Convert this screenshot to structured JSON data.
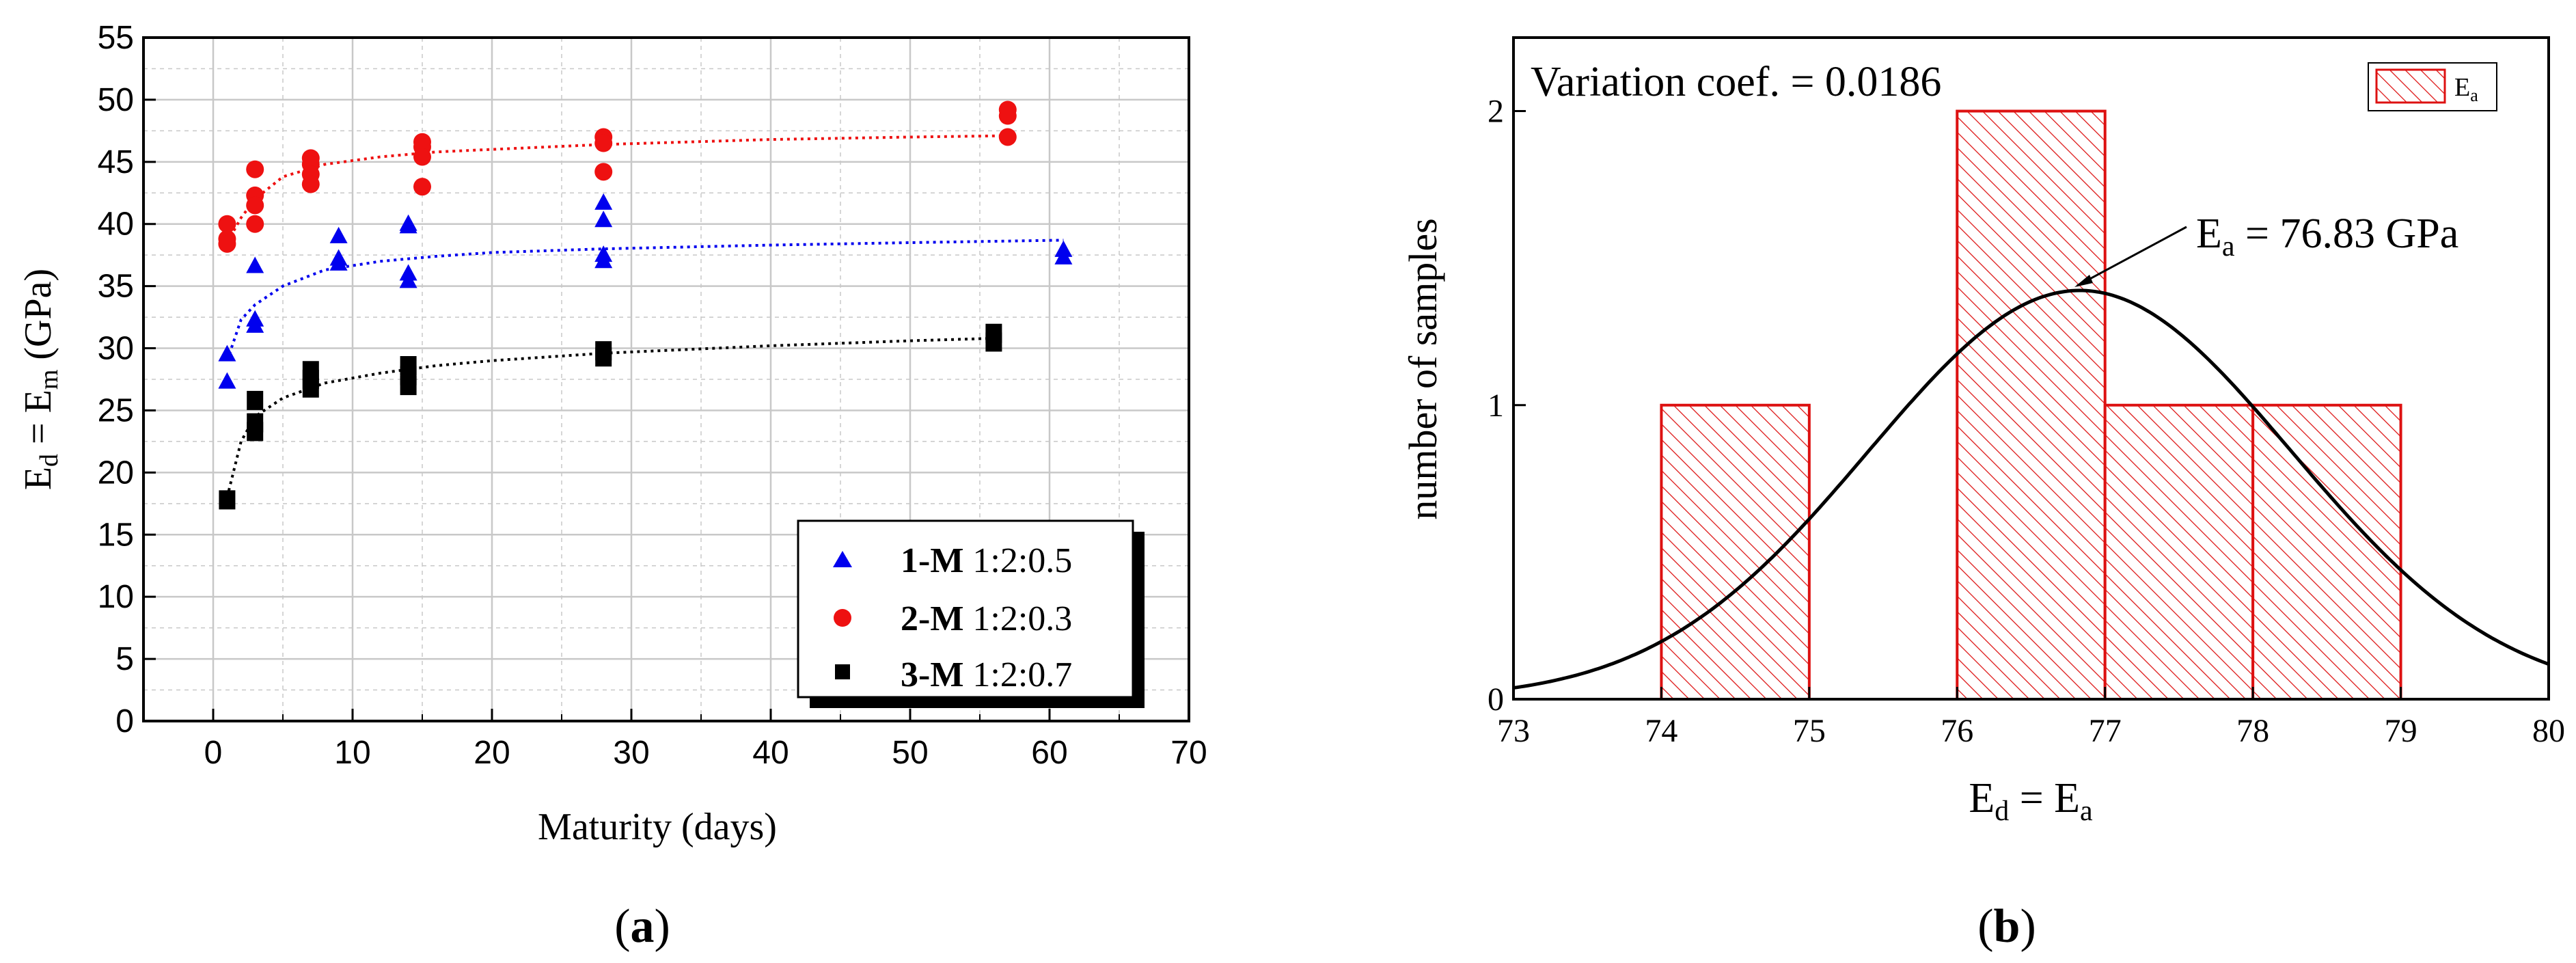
{
  "panel_a": {
    "label_open": "(",
    "label_letter": "a",
    "label_close": ")",
    "ylabel_main": "E",
    "ylabel_sub1": "d",
    "ylabel_mid": " = E",
    "ylabel_sub2": "m",
    "ylabel_tail": " (GPa)",
    "xlabel": "Maturity (days)",
    "legend": [
      {
        "bold": "1-M",
        "text": " 1:2:0.5"
      },
      {
        "bold": "2-M",
        "text": " 1:2:0.3"
      },
      {
        "bold": "3-M",
        "text": " 1:2:0.7"
      }
    ]
  },
  "panel_b": {
    "label_open": "(",
    "label_letter": "b",
    "label_close": ")",
    "variation_text": "Variation coef. = 0.0186",
    "ylabel": "number of samples",
    "xlabel_main": "E",
    "xlabel_sub1": "d",
    "xlabel_mid": " = E",
    "xlabel_sub2": "a",
    "legend_main": "E",
    "legend_sub": "a",
    "annot_main": "E",
    "annot_sub": "a",
    "annot_tail": " = 76.83  GPa"
  },
  "colors": {
    "blue": "#0000ee",
    "red": "#ee1111",
    "black": "#000000",
    "grid": "#c8c8c8",
    "hatch": "#dd1111"
  },
  "chart_data": [
    {
      "type": "scatter",
      "xlim": [
        -5,
        70
      ],
      "ylim": [
        0,
        55
      ],
      "xticks": [
        0,
        10,
        20,
        30,
        40,
        50,
        60,
        70
      ],
      "yticks": [
        0,
        5,
        10,
        15,
        20,
        25,
        30,
        35,
        40,
        45,
        50,
        55
      ],
      "grid": true,
      "legend_position": "bottom-right",
      "series": [
        {
          "name": "1-M 1:2:0.5",
          "marker": "triangle",
          "color": "#0000ee",
          "points": [
            [
              1,
              29.5
            ],
            [
              1,
              27.3
            ],
            [
              3,
              36.6
            ],
            [
              3,
              32.3
            ],
            [
              3,
              31.8
            ],
            [
              9,
              39
            ],
            [
              9,
              37.2
            ],
            [
              9,
              36.8
            ],
            [
              14,
              40
            ],
            [
              14,
              39.8
            ],
            [
              14,
              36
            ],
            [
              14,
              35.4
            ],
            [
              28,
              41.7
            ],
            [
              28,
              40.3
            ],
            [
              28,
              37.5
            ],
            [
              28,
              37
            ],
            [
              61,
              37.9
            ],
            [
              61,
              37.3
            ]
          ],
          "trend": [
            [
              1,
              29
            ],
            [
              2,
              32.3
            ],
            [
              3,
              33.5
            ],
            [
              5,
              35
            ],
            [
              8,
              36.3
            ],
            [
              12,
              37
            ],
            [
              16,
              37.4
            ],
            [
              20,
              37.7
            ],
            [
              28,
              38
            ],
            [
              40,
              38.3
            ],
            [
              50,
              38.5
            ],
            [
              61,
              38.7
            ]
          ]
        },
        {
          "name": "2-M 1:2:0.3",
          "marker": "circle",
          "color": "#ee1111",
          "points": [
            [
              1,
              40
            ],
            [
              1,
              38.8
            ],
            [
              1,
              38.4
            ],
            [
              3,
              44.4
            ],
            [
              3,
              42.3
            ],
            [
              3,
              41.5
            ],
            [
              3,
              40
            ],
            [
              7,
              45.3
            ],
            [
              7,
              44.8
            ],
            [
              7,
              44
            ],
            [
              7,
              43.2
            ],
            [
              15,
              46.6
            ],
            [
              15,
              46.2
            ],
            [
              15,
              45.4
            ],
            [
              15,
              43
            ],
            [
              28,
              47
            ],
            [
              28,
              46.5
            ],
            [
              28,
              44.2
            ],
            [
              57,
              49.2
            ],
            [
              57,
              48.7
            ],
            [
              57,
              47
            ]
          ],
          "trend": [
            [
              1,
              38.5
            ],
            [
              2,
              40.5
            ],
            [
              3,
              42
            ],
            [
              5,
              43.8
            ],
            [
              8,
              44.8
            ],
            [
              12,
              45.4
            ],
            [
              16,
              45.8
            ],
            [
              20,
              46
            ],
            [
              28,
              46.4
            ],
            [
              40,
              46.8
            ],
            [
              50,
              47
            ],
            [
              57,
              47.1
            ]
          ]
        },
        {
          "name": "3-M 1:2:0.7",
          "marker": "square",
          "color": "#000000",
          "points": [
            [
              1,
              17.8
            ],
            [
              3,
              25.8
            ],
            [
              3,
              24
            ],
            [
              3,
              23.3
            ],
            [
              7,
              28.2
            ],
            [
              7,
              27.5
            ],
            [
              7,
              26.8
            ],
            [
              14,
              28.6
            ],
            [
              14,
              27.8
            ],
            [
              14,
              27
            ],
            [
              28,
              29.8
            ],
            [
              28,
              29.3
            ],
            [
              56,
              31.2
            ],
            [
              56,
              30.5
            ]
          ],
          "trend": [
            [
              1,
              18
            ],
            [
              2,
              22.5
            ],
            [
              3,
              24.5
            ],
            [
              5,
              26
            ],
            [
              8,
              27.2
            ],
            [
              12,
              28
            ],
            [
              16,
              28.6
            ],
            [
              20,
              29
            ],
            [
              28,
              29.6
            ],
            [
              40,
              30.2
            ],
            [
              50,
              30.6
            ],
            [
              56,
              30.8
            ]
          ]
        }
      ]
    },
    {
      "type": "bar",
      "xlim": [
        73,
        80
      ],
      "ylim": [
        0,
        2.25
      ],
      "xticks": [
        73,
        74,
        75,
        76,
        77,
        78,
        79,
        80
      ],
      "yticks": [
        0,
        1,
        2
      ],
      "legend_position": "top-right",
      "bins": [
        [
          74,
          75,
          1
        ],
        [
          76,
          77,
          2
        ],
        [
          77,
          78,
          1
        ],
        [
          78,
          79,
          1
        ]
      ],
      "normal_curve": {
        "mean": 76.83,
        "peak": 1.39,
        "sd": 1.43
      }
    }
  ]
}
